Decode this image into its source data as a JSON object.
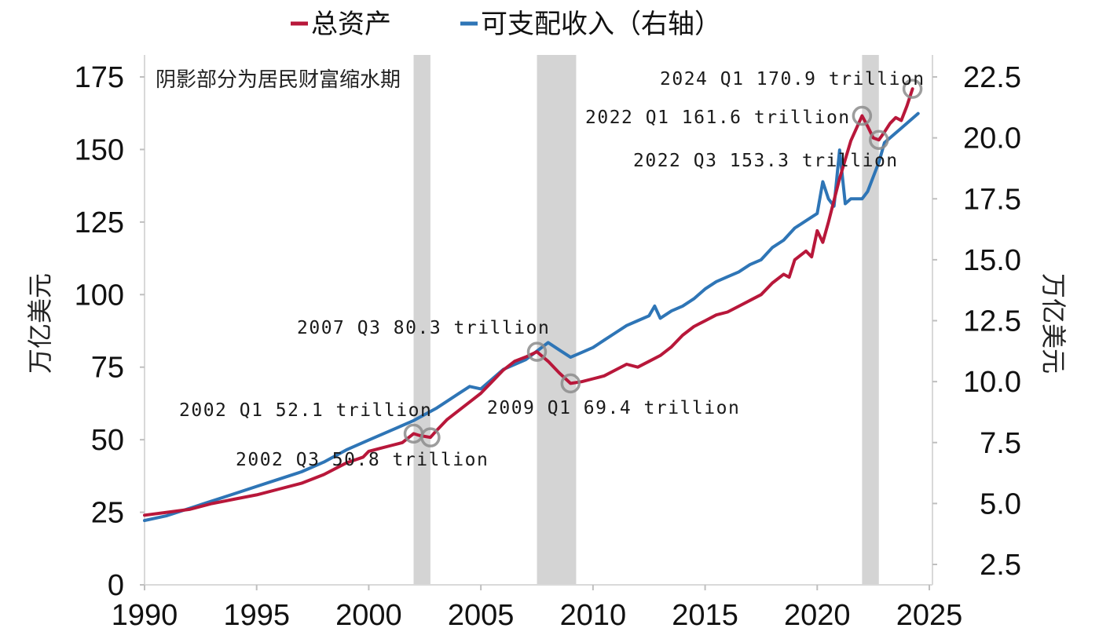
{
  "chart_data": {
    "type": "line",
    "title": "",
    "legend": {
      "position": "top-center",
      "entries": [
        {
          "label": "总资产",
          "color": "#b8173a",
          "axis": "left"
        },
        {
          "label": "可支配收入（右轴）",
          "color": "#2e75b6",
          "axis": "right"
        }
      ]
    },
    "note": "阴影部分为居民财富缩水期",
    "xlabel": "",
    "ylabel_left": "万亿美元",
    "ylabel_right": "万亿美元",
    "x_ticks": [
      "1990",
      "1995",
      "2000",
      "2005",
      "2010",
      "2015",
      "2020",
      "2025"
    ],
    "x_range": [
      1990,
      2025
    ],
    "y_left_ticks": [
      "0",
      "25",
      "50",
      "75",
      "100",
      "125",
      "150",
      "175"
    ],
    "y_left_range": [
      0,
      175
    ],
    "y_right_ticks": [
      "2.5",
      "5.0",
      "7.5",
      "10.0",
      "12.5",
      "15.0",
      "17.5",
      "20.0",
      "22.5"
    ],
    "y_right_range": [
      0.8,
      22.5
    ],
    "grid": false,
    "shaded_periods": [
      {
        "start": 2002.0,
        "end": 2002.75
      },
      {
        "start": 2007.5,
        "end": 2009.25
      },
      {
        "start": 2022.0,
        "end": 2022.75
      }
    ],
    "series": [
      {
        "name": "总资产",
        "axis": "left",
        "color": "#b8173a",
        "x": [
          1990.0,
          1991.0,
          1992.0,
          1993.0,
          1994.0,
          1995.0,
          1996.0,
          1997.0,
          1998.0,
          1999.0,
          1999.75,
          2000.0,
          2000.5,
          2001.0,
          2001.5,
          2002.0,
          2002.25,
          2002.75,
          2003.0,
          2003.5,
          2004.0,
          2004.5,
          2005.0,
          2005.5,
          2006.0,
          2006.5,
          2007.0,
          2007.5,
          2008.0,
          2008.5,
          2009.0,
          2009.5,
          2010.0,
          2010.5,
          2011.0,
          2011.5,
          2012.0,
          2012.5,
          2013.0,
          2013.5,
          2014.0,
          2014.5,
          2015.0,
          2015.5,
          2016.0,
          2016.5,
          2017.0,
          2017.5,
          2018.0,
          2018.5,
          2018.75,
          2019.0,
          2019.5,
          2019.75,
          2020.0,
          2020.25,
          2020.5,
          2021.0,
          2021.5,
          2022.0,
          2022.25,
          2022.5,
          2022.75,
          2023.0,
          2023.25,
          2023.5,
          2023.75,
          2024.0,
          2024.25
        ],
        "values": [
          24,
          25,
          26,
          28,
          29.5,
          31,
          33,
          35,
          38,
          42,
          44,
          46,
          47,
          48,
          49,
          52.1,
          51.5,
          50.8,
          53,
          57,
          60,
          63,
          66,
          70,
          74,
          77,
          78.5,
          80.3,
          77,
          73,
          69.4,
          70,
          71,
          72,
          74,
          76,
          75,
          77,
          79,
          82,
          86,
          89,
          91,
          93,
          94,
          96,
          98,
          100,
          104,
          107,
          106,
          112,
          115,
          113,
          122,
          118,
          125,
          140,
          153,
          161.6,
          158,
          154,
          153.3,
          156,
          159,
          161,
          160,
          165,
          170.9
        ]
      },
      {
        "name": "可支配收入（右轴）",
        "axis": "right",
        "color": "#2e75b6",
        "x": [
          1990.0,
          1991.0,
          1992.0,
          1993.0,
          1994.0,
          1995.0,
          1996.0,
          1997.0,
          1998.0,
          1999.0,
          2000.0,
          2001.0,
          2002.0,
          2003.0,
          2004.0,
          2004.5,
          2005.0,
          2005.5,
          2006.0,
          2007.0,
          2008.0,
          2008.5,
          2009.0,
          2009.5,
          2010.0,
          2010.5,
          2011.0,
          2011.5,
          2012.0,
          2012.5,
          2012.75,
          2013.0,
          2013.5,
          2014.0,
          2014.5,
          2015.0,
          2015.5,
          2016.0,
          2016.5,
          2017.0,
          2017.5,
          2018.0,
          2018.5,
          2019.0,
          2019.5,
          2020.0,
          2020.25,
          2020.5,
          2020.75,
          2021.0,
          2021.25,
          2021.5,
          2022.0,
          2022.25,
          2022.5,
          2022.75,
          2023.0,
          2023.5,
          2024.0,
          2024.5
        ],
        "values": [
          4.3,
          4.5,
          4.8,
          5.1,
          5.4,
          5.7,
          6.0,
          6.3,
          6.7,
          7.2,
          7.6,
          8.0,
          8.4,
          8.9,
          9.5,
          9.8,
          9.7,
          10.1,
          10.5,
          10.9,
          11.6,
          11.3,
          11.0,
          11.2,
          11.4,
          11.7,
          12.0,
          12.3,
          12.5,
          12.7,
          13.1,
          12.6,
          12.9,
          13.1,
          13.4,
          13.8,
          14.1,
          14.3,
          14.5,
          14.8,
          15.0,
          15.5,
          15.8,
          16.3,
          16.6,
          16.9,
          18.2,
          17.5,
          17.2,
          19.5,
          17.3,
          17.5,
          17.5,
          17.8,
          18.4,
          19.0,
          19.8,
          20.2,
          20.6,
          21.0
        ]
      }
    ],
    "annotations": [
      {
        "label": "2024 Q1 170.9 trillion",
        "x": 2024.25,
        "y": 170.9
      },
      {
        "label": "2022 Q1 161.6 trillion",
        "x": 2022.0,
        "y": 161.6
      },
      {
        "label": "2022 Q3 153.3 trillion",
        "x": 2022.75,
        "y": 153.3
      },
      {
        "label": "2007 Q3 80.3 trillion",
        "x": 2007.5,
        "y": 80.3
      },
      {
        "label": "2009 Q1 69.4 trillion",
        "x": 2009.0,
        "y": 69.4
      },
      {
        "label": "2002 Q1 52.1 trillion",
        "x": 2002.0,
        "y": 52.1
      },
      {
        "label": "2002 Q3 50.8 trillion",
        "x": 2002.75,
        "y": 50.8
      }
    ]
  },
  "legend": {
    "item0": "总资产",
    "item1": "可支配收入（右轴）"
  },
  "axes": {
    "left_title": "万亿美元",
    "right_title": "万亿美元",
    "note": "阴影部分为居民财富缩水期"
  },
  "colors": {
    "assets": "#b8173a",
    "income": "#2e75b6",
    "shade": "#d4d4d4",
    "marker": "#8c8c8c"
  }
}
